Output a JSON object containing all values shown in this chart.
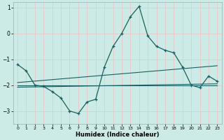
{
  "title": "",
  "xlabel": "Humidex (Indice chaleur)",
  "ylabel": "",
  "bg_color": "#cceae6",
  "grid_color": "#e8c8c8",
  "line_color": "#1a6060",
  "xlim": [
    -0.5,
    23.5
  ],
  "ylim": [
    -3.5,
    1.2
  ],
  "yticks": [
    -3,
    -2,
    -1,
    0,
    1
  ],
  "xticks": [
    0,
    1,
    2,
    3,
    4,
    5,
    6,
    7,
    8,
    9,
    10,
    11,
    12,
    13,
    14,
    15,
    16,
    17,
    18,
    19,
    20,
    21,
    22,
    23
  ],
  "series1_x": [
    0,
    1,
    2,
    3,
    4,
    5,
    6,
    7,
    8,
    9,
    10,
    11,
    12,
    13,
    14,
    15,
    16,
    17,
    18,
    19,
    20,
    21,
    22,
    23
  ],
  "series1_y": [
    -1.2,
    -1.45,
    -2.0,
    -2.05,
    -2.25,
    -2.5,
    -3.0,
    -3.1,
    -2.65,
    -2.55,
    -1.3,
    -0.5,
    0.0,
    0.65,
    1.05,
    -0.1,
    -0.5,
    -0.65,
    -0.75,
    -1.3,
    -2.0,
    -2.1,
    -1.65,
    -1.85
  ],
  "series2_x": [
    0,
    23
  ],
  "series2_y": [
    -1.9,
    -1.25
  ],
  "series3_x": [
    0,
    23
  ],
  "series3_y": [
    -2.0,
    -2.0
  ],
  "series4_x": [
    0,
    23
  ],
  "series4_y": [
    -2.08,
    -1.95
  ]
}
